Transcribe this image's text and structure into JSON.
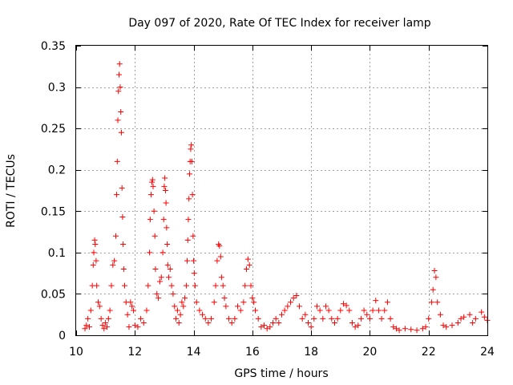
{
  "chart_data": {
    "type": "scatter",
    "title": "Day 097 of 2020, Rate Of TEC Index for receiver lamp",
    "xlabel": "GPS time / hours",
    "ylabel": "ROTI / TECUs",
    "xlim": [
      10,
      24
    ],
    "ylim": [
      0,
      0.35
    ],
    "xticks": [
      "10",
      "12",
      "14",
      "16",
      "18",
      "20",
      "22",
      "24"
    ],
    "yticks": [
      "0",
      "0.05",
      "0.1",
      "0.15",
      "0.2",
      "0.25",
      "0.3",
      "0.35"
    ],
    "grid": true,
    "marker": "+",
    "color": "#ff0000",
    "series": [
      {
        "values": [
          [
            10.3,
            0.008
          ],
          [
            10.35,
            0.012
          ],
          [
            10.4,
            0.02
          ],
          [
            10.45,
            0.01
          ],
          [
            10.5,
            0.03
          ],
          [
            10.55,
            0.06
          ],
          [
            10.58,
            0.085
          ],
          [
            10.6,
            0.1
          ],
          [
            10.63,
            0.115
          ],
          [
            10.65,
            0.11
          ],
          [
            10.68,
            0.09
          ],
          [
            10.7,
            0.06
          ],
          [
            10.75,
            0.04
          ],
          [
            10.8,
            0.035
          ],
          [
            10.85,
            0.02
          ],
          [
            10.9,
            0.012
          ],
          [
            10.95,
            0.008
          ],
          [
            11.0,
            0.015
          ],
          [
            11.05,
            0.01
          ],
          [
            11.1,
            0.02
          ],
          [
            11.15,
            0.03
          ],
          [
            11.2,
            0.06
          ],
          [
            11.25,
            0.085
          ],
          [
            11.3,
            0.09
          ],
          [
            11.35,
            0.12
          ],
          [
            11.38,
            0.17
          ],
          [
            11.4,
            0.21
          ],
          [
            11.42,
            0.26
          ],
          [
            11.44,
            0.295
          ],
          [
            11.46,
            0.315
          ],
          [
            11.48,
            0.328
          ],
          [
            11.5,
            0.3
          ],
          [
            11.52,
            0.27
          ],
          [
            11.54,
            0.245
          ],
          [
            11.56,
            0.178
          ],
          [
            11.58,
            0.143
          ],
          [
            11.6,
            0.11
          ],
          [
            11.62,
            0.08
          ],
          [
            11.65,
            0.06
          ],
          [
            11.7,
            0.04
          ],
          [
            11.75,
            0.025
          ],
          [
            11.8,
            0.01
          ],
          [
            11.85,
            0.04
          ],
          [
            11.9,
            0.035
          ],
          [
            11.95,
            0.03
          ],
          [
            12.0,
            0.012
          ],
          [
            12.1,
            0.01
          ],
          [
            12.2,
            0.02
          ],
          [
            12.3,
            0.015
          ],
          [
            12.4,
            0.03
          ],
          [
            12.45,
            0.06
          ],
          [
            12.5,
            0.1
          ],
          [
            12.52,
            0.14
          ],
          [
            12.55,
            0.17
          ],
          [
            12.58,
            0.185
          ],
          [
            12.6,
            0.188
          ],
          [
            12.62,
            0.18
          ],
          [
            12.65,
            0.15
          ],
          [
            12.68,
            0.12
          ],
          [
            12.7,
            0.08
          ],
          [
            12.75,
            0.05
          ],
          [
            12.8,
            0.045
          ],
          [
            12.85,
            0.065
          ],
          [
            12.9,
            0.07
          ],
          [
            12.95,
            0.1
          ],
          [
            12.98,
            0.14
          ],
          [
            13.0,
            0.18
          ],
          [
            13.02,
            0.19
          ],
          [
            13.04,
            0.175
          ],
          [
            13.06,
            0.16
          ],
          [
            13.08,
            0.13
          ],
          [
            13.1,
            0.11
          ],
          [
            13.12,
            0.085
          ],
          [
            13.15,
            0.07
          ],
          [
            13.2,
            0.08
          ],
          [
            13.25,
            0.06
          ],
          [
            13.3,
            0.05
          ],
          [
            13.35,
            0.035
          ],
          [
            13.4,
            0.02
          ],
          [
            13.45,
            0.03
          ],
          [
            13.5,
            0.015
          ],
          [
            13.55,
            0.025
          ],
          [
            13.6,
            0.04
          ],
          [
            13.65,
            0.035
          ],
          [
            13.7,
            0.045
          ],
          [
            13.75,
            0.06
          ],
          [
            13.78,
            0.09
          ],
          [
            13.8,
            0.115
          ],
          [
            13.82,
            0.14
          ],
          [
            13.84,
            0.165
          ],
          [
            13.86,
            0.195
          ],
          [
            13.88,
            0.21
          ],
          [
            13.9,
            0.225
          ],
          [
            13.92,
            0.23
          ],
          [
            13.94,
            0.21
          ],
          [
            13.96,
            0.17
          ],
          [
            13.98,
            0.12
          ],
          [
            14.0,
            0.09
          ],
          [
            14.02,
            0.075
          ],
          [
            14.05,
            0.06
          ],
          [
            14.1,
            0.04
          ],
          [
            14.2,
            0.03
          ],
          [
            14.3,
            0.025
          ],
          [
            14.4,
            0.02
          ],
          [
            14.5,
            0.015
          ],
          [
            14.6,
            0.02
          ],
          [
            14.7,
            0.04
          ],
          [
            14.75,
            0.06
          ],
          [
            14.8,
            0.09
          ],
          [
            14.85,
            0.11
          ],
          [
            14.88,
            0.108
          ],
          [
            14.92,
            0.095
          ],
          [
            14.95,
            0.07
          ],
          [
            15.0,
            0.06
          ],
          [
            15.05,
            0.045
          ],
          [
            15.1,
            0.035
          ],
          [
            15.2,
            0.02
          ],
          [
            15.3,
            0.015
          ],
          [
            15.4,
            0.02
          ],
          [
            15.5,
            0.035
          ],
          [
            15.6,
            0.03
          ],
          [
            15.7,
            0.04
          ],
          [
            15.75,
            0.06
          ],
          [
            15.8,
            0.08
          ],
          [
            15.85,
            0.092
          ],
          [
            15.9,
            0.085
          ],
          [
            15.95,
            0.06
          ],
          [
            16.0,
            0.045
          ],
          [
            16.05,
            0.04
          ],
          [
            16.1,
            0.03
          ],
          [
            16.2,
            0.02
          ],
          [
            16.3,
            0.01
          ],
          [
            16.4,
            0.012
          ],
          [
            16.5,
            0.008
          ],
          [
            16.6,
            0.01
          ],
          [
            16.7,
            0.015
          ],
          [
            16.8,
            0.02
          ],
          [
            16.9,
            0.015
          ],
          [
            17.0,
            0.025
          ],
          [
            17.1,
            0.03
          ],
          [
            17.2,
            0.035
          ],
          [
            17.3,
            0.04
          ],
          [
            17.4,
            0.045
          ],
          [
            17.5,
            0.048
          ],
          [
            17.6,
            0.035
          ],
          [
            17.7,
            0.02
          ],
          [
            17.8,
            0.025
          ],
          [
            17.9,
            0.015
          ],
          [
            18.0,
            0.01
          ],
          [
            18.1,
            0.02
          ],
          [
            18.2,
            0.035
          ],
          [
            18.3,
            0.03
          ],
          [
            18.4,
            0.02
          ],
          [
            18.5,
            0.035
          ],
          [
            18.6,
            0.03
          ],
          [
            18.7,
            0.02
          ],
          [
            18.8,
            0.015
          ],
          [
            18.9,
            0.02
          ],
          [
            19.0,
            0.03
          ],
          [
            19.1,
            0.038
          ],
          [
            19.2,
            0.036
          ],
          [
            19.3,
            0.03
          ],
          [
            19.4,
            0.015
          ],
          [
            19.5,
            0.01
          ],
          [
            19.6,
            0.012
          ],
          [
            19.7,
            0.02
          ],
          [
            19.8,
            0.03
          ],
          [
            19.9,
            0.025
          ],
          [
            20.0,
            0.02
          ],
          [
            20.1,
            0.03
          ],
          [
            20.2,
            0.042
          ],
          [
            20.3,
            0.03
          ],
          [
            20.4,
            0.02
          ],
          [
            20.5,
            0.03
          ],
          [
            20.6,
            0.04
          ],
          [
            20.7,
            0.02
          ],
          [
            20.8,
            0.01
          ],
          [
            20.9,
            0.008
          ],
          [
            21.0,
            0.006
          ],
          [
            21.2,
            0.008
          ],
          [
            21.4,
            0.007
          ],
          [
            21.6,
            0.006
          ],
          [
            21.8,
            0.008
          ],
          [
            21.9,
            0.01
          ],
          [
            22.0,
            0.02
          ],
          [
            22.1,
            0.04
          ],
          [
            22.15,
            0.055
          ],
          [
            22.2,
            0.078
          ],
          [
            22.25,
            0.07
          ],
          [
            22.3,
            0.04
          ],
          [
            22.4,
            0.025
          ],
          [
            22.5,
            0.012
          ],
          [
            22.6,
            0.01
          ],
          [
            22.8,
            0.012
          ],
          [
            23.0,
            0.015
          ],
          [
            23.1,
            0.02
          ],
          [
            23.2,
            0.022
          ],
          [
            23.4,
            0.025
          ],
          [
            23.5,
            0.015
          ],
          [
            23.6,
            0.02
          ],
          [
            23.8,
            0.028
          ],
          [
            23.9,
            0.022
          ],
          [
            24.0,
            0.018
          ]
        ]
      }
    ]
  }
}
